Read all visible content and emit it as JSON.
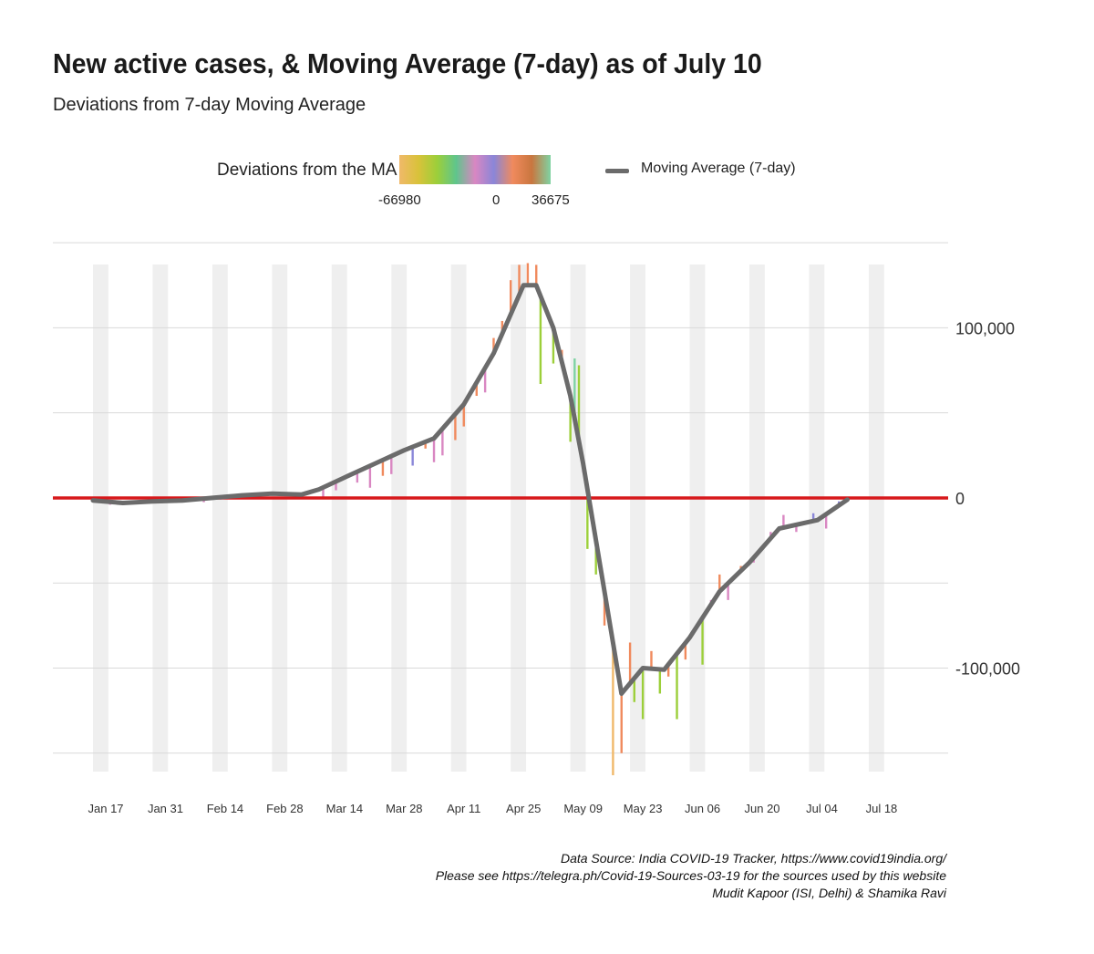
{
  "title": "New active cases, & Moving Average (7-day) as of July 10",
  "subtitle": "Deviations from 7-day Moving Average",
  "legend": {
    "gradient_title": "Deviations from the MA",
    "gradient_ticks": [
      "-66980",
      "0",
      "36675"
    ],
    "gradient_colors": [
      "#f0b96a",
      "#d9c23a",
      "#9ccf3a",
      "#5fc58c",
      "#d987c2",
      "#8a86d8",
      "#f08a5d",
      "#c9763f",
      "#7fd3a3"
    ],
    "ma_label": "Moving Average (7-day)"
  },
  "captions": [
    "Data Source: India COVID-19 Tracker, https://www.covid19india.org/",
    "Please see https://telegra.ph/Covid-19-Sources-03-19 for the sources used by this website",
    "Mudit Kapoor (ISI, Delhi) & Shamika Ravi"
  ],
  "chart_data": {
    "type": "line",
    "title": "New active cases, & Moving Average (7-day) as of July 10",
    "subtitle": "Deviations from 7-day Moving Average",
    "x_start": "2021-01-14",
    "x_end": "2021-07-24",
    "x_ticks": [
      {
        "date": "2021-01-17",
        "label": "Jan 17"
      },
      {
        "date": "2021-01-31",
        "label": "Jan 31"
      },
      {
        "date": "2021-02-14",
        "label": "Feb 14"
      },
      {
        "date": "2021-02-28",
        "label": "Feb 28"
      },
      {
        "date": "2021-03-14",
        "label": "Mar 14"
      },
      {
        "date": "2021-03-28",
        "label": "Mar 28"
      },
      {
        "date": "2021-04-11",
        "label": "Apr 11"
      },
      {
        "date": "2021-04-25",
        "label": "Apr 25"
      },
      {
        "date": "2021-05-09",
        "label": "May 09"
      },
      {
        "date": "2021-05-23",
        "label": "May 23"
      },
      {
        "date": "2021-06-06",
        "label": "Jun 06"
      },
      {
        "date": "2021-06-20",
        "label": "Jun 20"
      },
      {
        "date": "2021-07-04",
        "label": "Jul 04"
      },
      {
        "date": "2021-07-18",
        "label": "Jul 18"
      }
    ],
    "y_ticks": [
      {
        "value": 100000,
        "label": "100,000"
      },
      {
        "value": 0,
        "label": "0"
      },
      {
        "value": -100000,
        "label": "-100,000"
      }
    ],
    "ylim": [
      -163000,
      149000
    ],
    "gridlines_y": [
      150000,
      100000,
      50000,
      0,
      -50000,
      -100000,
      -150000
    ],
    "reference_line": {
      "value": 0,
      "color": "#d7191c"
    },
    "ma_color": "#6b6b6b",
    "colors": {
      "neg_large": "#f0b96a",
      "neg_mid": "#9ccf3a",
      "neg_small": "#d987c2",
      "pos_small": "#8a86d8",
      "pos_mid": "#f08a5d",
      "pos_large": "#7fd3a3"
    },
    "series": [
      {
        "name": "Moving Average (7-day)",
        "points": [
          [
            "2021-01-14",
            -1500
          ],
          [
            "2021-01-21",
            -3000
          ],
          [
            "2021-01-28",
            -2000
          ],
          [
            "2021-02-04",
            -1500
          ],
          [
            "2021-02-11",
            0
          ],
          [
            "2021-02-18",
            1500
          ],
          [
            "2021-02-25",
            2500
          ],
          [
            "2021-03-04",
            2000
          ],
          [
            "2021-03-08",
            5000
          ],
          [
            "2021-03-14",
            12000
          ],
          [
            "2021-03-21",
            20000
          ],
          [
            "2021-03-28",
            28000
          ],
          [
            "2021-04-04",
            35000
          ],
          [
            "2021-04-11",
            55000
          ],
          [
            "2021-04-18",
            85000
          ],
          [
            "2021-04-25",
            125000
          ],
          [
            "2021-04-28",
            125000
          ],
          [
            "2021-05-02",
            100000
          ],
          [
            "2021-05-06",
            60000
          ],
          [
            "2021-05-09",
            20000
          ],
          [
            "2021-05-13",
            -40000
          ],
          [
            "2021-05-18",
            -115000
          ],
          [
            "2021-05-23",
            -100000
          ],
          [
            "2021-05-28",
            -101000
          ],
          [
            "2021-06-03",
            -82000
          ],
          [
            "2021-06-10",
            -55000
          ],
          [
            "2021-06-17",
            -38000
          ],
          [
            "2021-06-24",
            -18000
          ],
          [
            "2021-07-03",
            -13000
          ],
          [
            "2021-07-10",
            -1000
          ]
        ]
      }
    ],
    "deviation_bars": [
      [
        "2021-01-14",
        0,
        "neg_small"
      ],
      [
        "2021-01-16",
        -500,
        "neg_small"
      ],
      [
        "2021-01-18",
        -4000,
        "neg_small"
      ],
      [
        "2021-01-20",
        -2500,
        "neg_small"
      ],
      [
        "2021-01-22",
        -4000,
        "neg_small"
      ],
      [
        "2021-01-24",
        -3000,
        "pos_small"
      ],
      [
        "2021-01-26",
        -2500,
        "neg_small"
      ],
      [
        "2021-01-28",
        -1500,
        "neg_small"
      ],
      [
        "2021-02-01",
        -1500,
        "neg_small"
      ],
      [
        "2021-02-05",
        -1500,
        "pos_small"
      ],
      [
        "2021-02-09",
        -2500,
        "neg_small"
      ],
      [
        "2021-02-13",
        -1000,
        "neg_small"
      ],
      [
        "2021-02-17",
        1000,
        "neg_small"
      ],
      [
        "2021-02-21",
        3000,
        "pos_small"
      ],
      [
        "2021-02-23",
        1500,
        "neg_small"
      ],
      [
        "2021-02-25",
        3500,
        "pos_small"
      ],
      [
        "2021-02-27",
        2500,
        "pos_mid"
      ],
      [
        "2021-03-03",
        2500,
        "neg_small"
      ],
      [
        "2021-03-09",
        -500,
        "neg_small"
      ],
      [
        "2021-03-12",
        4500,
        "neg_small"
      ],
      [
        "2021-03-17",
        9000,
        "neg_small"
      ],
      [
        "2021-03-20",
        6000,
        "neg_small"
      ],
      [
        "2021-03-23",
        13000,
        "pos_mid"
      ],
      [
        "2021-03-25",
        14000,
        "neg_small"
      ],
      [
        "2021-03-30",
        19000,
        "pos_small"
      ],
      [
        "2021-04-02",
        29000,
        "pos_mid"
      ],
      [
        "2021-04-04",
        21000,
        "neg_small"
      ],
      [
        "2021-04-06",
        25000,
        "neg_small"
      ],
      [
        "2021-04-09",
        34000,
        "pos_mid"
      ],
      [
        "2021-04-11",
        42000,
        "pos_mid"
      ],
      [
        "2021-04-14",
        60000,
        "pos_mid"
      ],
      [
        "2021-04-16",
        62000,
        "neg_small"
      ],
      [
        "2021-04-18",
        94000,
        "pos_mid"
      ],
      [
        "2021-04-20",
        104000,
        "pos_mid"
      ],
      [
        "2021-04-22",
        128000,
        "pos_mid"
      ],
      [
        "2021-04-24",
        137000,
        "pos_mid"
      ],
      [
        "2021-04-26",
        138000,
        "pos_mid"
      ],
      [
        "2021-04-28",
        137000,
        "pos_mid"
      ],
      [
        "2021-04-29",
        67000,
        "neg_mid"
      ],
      [
        "2021-05-02",
        79000,
        "neg_mid"
      ],
      [
        "2021-05-04",
        87000,
        "pos_mid"
      ],
      [
        "2021-05-06",
        33000,
        "neg_mid"
      ],
      [
        "2021-05-07",
        82000,
        "pos_large"
      ],
      [
        "2021-05-08",
        78000,
        "neg_mid"
      ],
      [
        "2021-05-09",
        15000,
        "neg_small"
      ],
      [
        "2021-05-10",
        -30000,
        "neg_mid"
      ],
      [
        "2021-05-12",
        -45000,
        "neg_mid"
      ],
      [
        "2021-05-14",
        -75000,
        "pos_mid"
      ],
      [
        "2021-05-16",
        -163000,
        "neg_large"
      ],
      [
        "2021-05-18",
        -150000,
        "pos_mid"
      ],
      [
        "2021-05-20",
        -85000,
        "pos_mid"
      ],
      [
        "2021-05-21",
        -120000,
        "neg_mid"
      ],
      [
        "2021-05-23",
        -130000,
        "neg_mid"
      ],
      [
        "2021-05-25",
        -90000,
        "pos_mid"
      ],
      [
        "2021-05-27",
        -115000,
        "neg_mid"
      ],
      [
        "2021-05-29",
        -105000,
        "pos_mid"
      ],
      [
        "2021-05-31",
        -130000,
        "neg_mid"
      ],
      [
        "2021-06-02",
        -95000,
        "pos_mid"
      ],
      [
        "2021-06-06",
        -98000,
        "neg_mid"
      ],
      [
        "2021-06-08",
        -60000,
        "neg_small"
      ],
      [
        "2021-06-10",
        -45000,
        "pos_mid"
      ],
      [
        "2021-06-12",
        -60000,
        "neg_small"
      ],
      [
        "2021-06-15",
        -40000,
        "pos_mid"
      ],
      [
        "2021-06-18",
        -38000,
        "neg_small"
      ],
      [
        "2021-06-22",
        -20000,
        "neg_small"
      ],
      [
        "2021-06-25",
        -10000,
        "neg_small"
      ],
      [
        "2021-06-28",
        -20000,
        "neg_small"
      ],
      [
        "2021-07-02",
        -9000,
        "pos_small"
      ],
      [
        "2021-07-05",
        -18000,
        "neg_small"
      ],
      [
        "2021-07-08",
        -2000,
        "pos_small"
      ],
      [
        "2021-07-10",
        -2000,
        "pos_mid"
      ]
    ]
  }
}
